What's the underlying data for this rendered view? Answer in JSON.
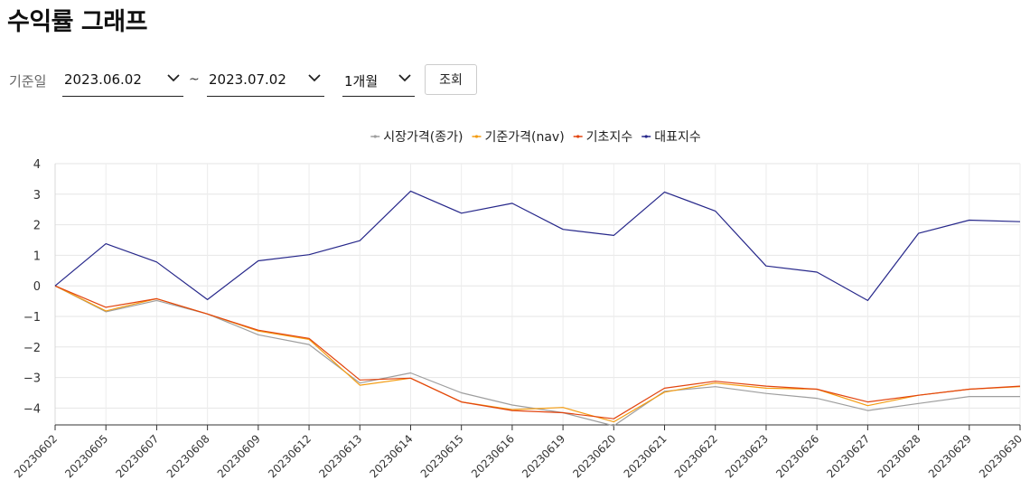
{
  "page": {
    "title": "수익률 그래프"
  },
  "filters": {
    "label": "기준일",
    "start_date": "2023.06.02",
    "separator": "~",
    "end_date": "2023.07.02",
    "period": "1개월",
    "search_label": "조회"
  },
  "chart_data": {
    "type": "line",
    "title": "",
    "xlabel": "",
    "ylabel": "",
    "categories": [
      "20230602",
      "20230605",
      "20230607",
      "20230608",
      "20230609",
      "20230612",
      "20230613",
      "20230614",
      "20230615",
      "20230616",
      "20230619",
      "20230620",
      "20230621",
      "20230622",
      "20230623",
      "20230626",
      "20230627",
      "20230628",
      "20230629",
      "20230630"
    ],
    "ylim": [
      -4.55,
      4
    ],
    "yticks": [
      "4",
      "3",
      "2",
      "1",
      "0",
      "−1",
      "−2",
      "−3",
      "−4"
    ],
    "ytick_values": [
      4,
      3,
      2,
      1,
      0,
      -1,
      -2,
      -3,
      -4
    ],
    "grid": true,
    "legend_position": "top-center",
    "series": [
      {
        "name": "시장가격(종가)",
        "color": "#9e9e9e",
        "values": [
          0,
          -0.85,
          -0.48,
          -0.92,
          -1.6,
          -1.92,
          -3.18,
          -2.85,
          -3.5,
          -3.9,
          -4.15,
          -4.58,
          -3.45,
          -3.3,
          -3.52,
          -3.68,
          -4.08,
          -3.85,
          -3.62,
          -3.62
        ]
      },
      {
        "name": "기준가격(nav)",
        "color": "#f39c12",
        "values": [
          0,
          -0.82,
          -0.42,
          -0.92,
          -1.48,
          -1.75,
          -3.25,
          -3.02,
          -3.8,
          -4.05,
          -3.98,
          -4.45,
          -3.48,
          -3.18,
          -3.35,
          -3.38,
          -3.92,
          -3.58,
          -3.38,
          -3.3
        ]
      },
      {
        "name": "기초지수",
        "color": "#e2440e",
        "values": [
          0,
          -0.7,
          -0.42,
          -0.92,
          -1.45,
          -1.72,
          -3.08,
          -3.02,
          -3.8,
          -4.08,
          -4.15,
          -4.35,
          -3.35,
          -3.12,
          -3.28,
          -3.38,
          -3.8,
          -3.58,
          -3.38,
          -3.28
        ]
      },
      {
        "name": "대표지수",
        "color": "#26278a",
        "values": [
          0,
          1.38,
          0.78,
          -0.45,
          0.82,
          1.02,
          1.48,
          3.1,
          2.38,
          2.7,
          1.85,
          1.65,
          3.07,
          2.45,
          0.65,
          0.45,
          -0.48,
          1.72,
          2.15,
          2.1
        ]
      }
    ]
  }
}
